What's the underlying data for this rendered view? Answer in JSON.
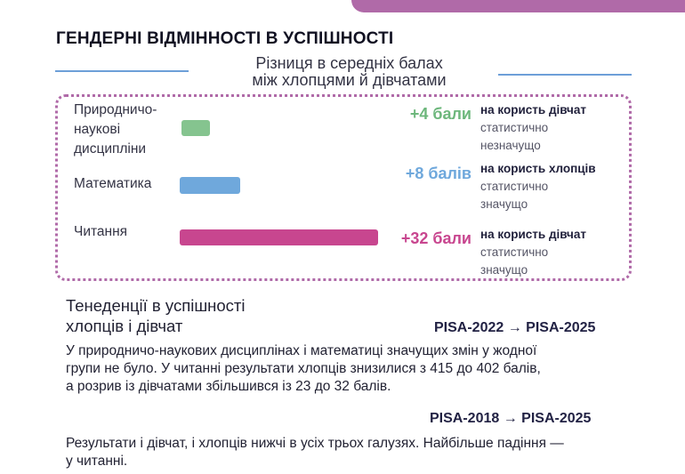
{
  "header": {
    "title": "ГЕНДЕРНІ ВІДМІННОСТІ В УСПІШНОСТІ",
    "subtitle_line1": "Різниця в середніх балах",
    "subtitle_line2": "між хлопцями й дівчатами"
  },
  "colors": {
    "accent": "#b06aa8",
    "rule": "#6d9fd8",
    "girls": "#85c48f",
    "boys": "#6fa8dc",
    "reading": "#c8468f"
  },
  "chart_data": {
    "type": "bar",
    "orientation": "horizontal",
    "title": "Різниця в середніх балах між хлопцями й дівчатами",
    "categories": [
      "Природничо-наукові дисципліни",
      "Математика",
      "Читання"
    ],
    "values": [
      4,
      8,
      32
    ],
    "value_labels": [
      "+4 бали",
      "+8 балів",
      "+32 бали"
    ],
    "bar_colors": [
      "#85c48f",
      "#6fa8dc",
      "#c8468f"
    ],
    "grid": false,
    "xlim": [
      0,
      32
    ]
  },
  "rows": [
    {
      "label_lines": [
        "Природничо-",
        "наукові",
        "дисципліни"
      ],
      "value_label": "+4 бали",
      "value_color": "#6db77c",
      "direction": "на користь дівчат",
      "significance_lines": [
        "статистично",
        "незначущо"
      ]
    },
    {
      "label_lines": [
        "Математика"
      ],
      "value_label": "+8 балів",
      "value_color": "#6fa8dc",
      "direction": "на користь хлопців",
      "significance_lines": [
        "статистично",
        "значущо"
      ]
    },
    {
      "label_lines": [
        "Читання"
      ],
      "value_label": "+32 бали",
      "value_color": "#c8468f",
      "direction": "на користь дівчат",
      "significance_lines": [
        "статистично",
        "значущо"
      ]
    }
  ],
  "trends": {
    "title_line1": "Тенеденції в успішності",
    "title_line2": "хлопців і дівчат",
    "period1": "PISA-2022 → PISA-2025",
    "text1_lines": [
      "У природничо-наукових дисциплінах і математиці значущих змін у жодної",
      "групи не було. У читанні результати хлопців знизилися з 415 до 402 балів,",
      "а розрив із дівчатами збільшився із 23 до 32 балів."
    ],
    "period2": "PISA-2018 → PISA-2025",
    "text2_lines": [
      "Результати і дівчат, і хлопців нижчі в усіх трьох галузях. Найбільше падіння —",
      "у читанні."
    ]
  }
}
